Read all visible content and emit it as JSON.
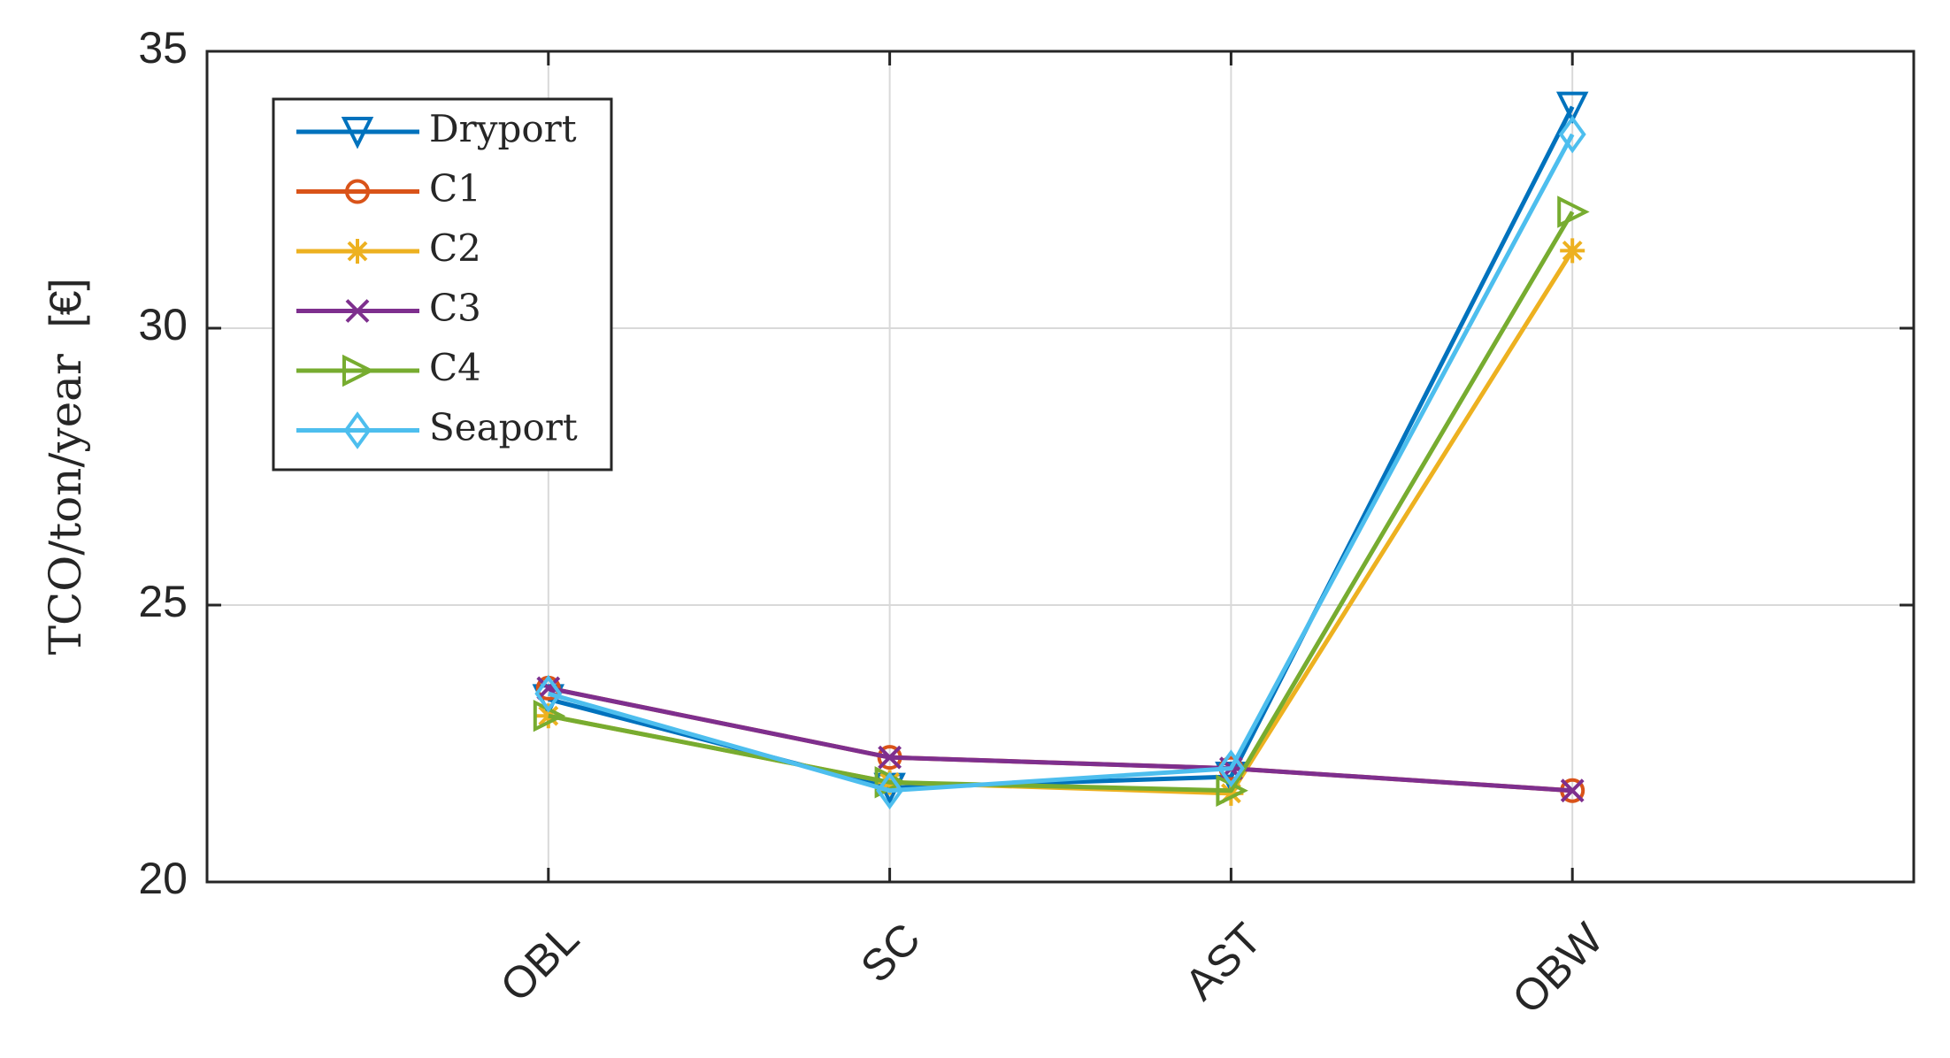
{
  "chart_data": {
    "type": "line",
    "categories": [
      "OBL",
      "SC",
      "AST",
      "OBW"
    ],
    "ylim": [
      20,
      35
    ],
    "yticks": [
      "20",
      "25",
      "30",
      "35"
    ],
    "ylabel": "TCO/ton/year",
    "ylabel_unit": "[€]",
    "xlabel": "",
    "grid": true,
    "legend_position": "top-left",
    "series": [
      {
        "name": "Dryport",
        "color": "#0072BD",
        "marker": "triangle-down",
        "values": [
          23.3,
          21.7,
          21.9,
          34.0
        ]
      },
      {
        "name": "C1",
        "color": "#D95319",
        "marker": "circle",
        "values": [
          23.5,
          22.25,
          22.05,
          21.65
        ]
      },
      {
        "name": "C2",
        "color": "#EDB120",
        "marker": "asterisk",
        "values": [
          23.0,
          21.8,
          21.6,
          31.4
        ]
      },
      {
        "name": "C3",
        "color": "#7E2F8E",
        "marker": "x",
        "values": [
          23.5,
          22.25,
          22.05,
          21.65
        ]
      },
      {
        "name": "C4",
        "color": "#77AC30",
        "marker": "triangle-right",
        "values": [
          23.0,
          21.8,
          21.65,
          32.1
        ]
      },
      {
        "name": "Seaport",
        "color": "#4DBEEE",
        "marker": "diamond",
        "values": [
          23.4,
          21.65,
          22.05,
          33.5
        ]
      }
    ]
  }
}
